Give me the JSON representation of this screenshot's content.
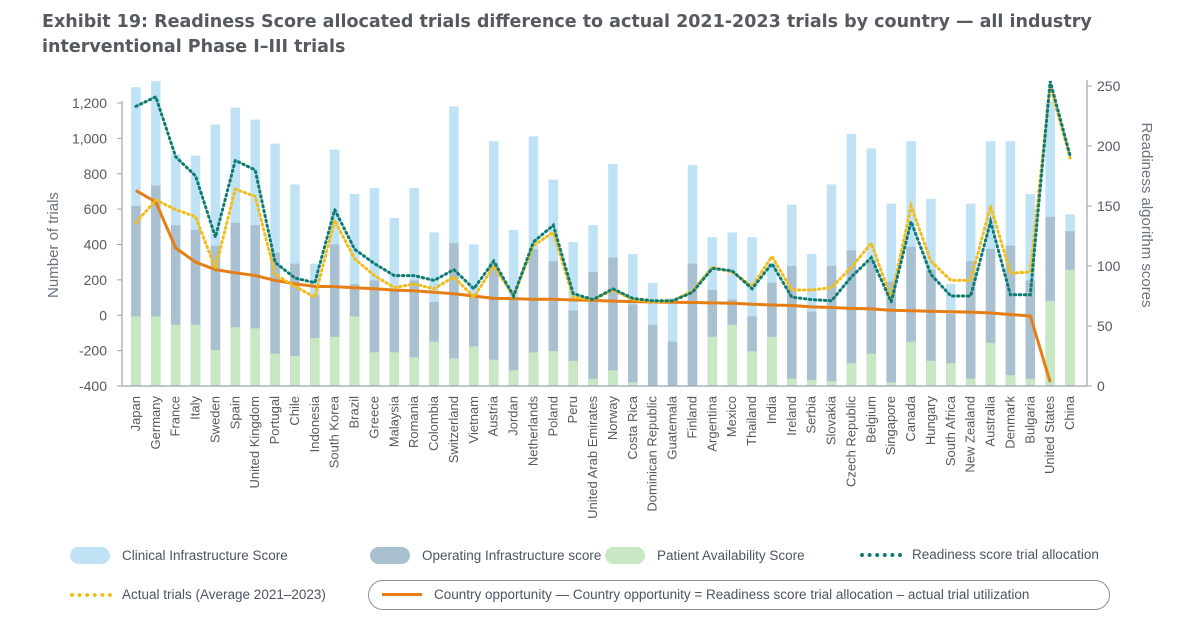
{
  "title": "Exhibit 19: Readiness Score allocated trials difference to actual 2021-2023 trials by country — all industry interventional Phase I–III trials",
  "colors": {
    "clinical": "#bfe3f5",
    "operating": "#a9c0d1",
    "patient": "#c8e8c3",
    "readiness": "#0e7c74",
    "actual": "#f2bd1a",
    "opportunity": "#e67e16",
    "axis": "#9ea5ad",
    "text": "#555a61"
  },
  "legend": {
    "clinical": "Clinical Infrastructure Score",
    "operating": "Operating Infrastructure score",
    "patient": "Patient Availability Score",
    "readiness": "Readiness score trial allocation",
    "actual": "Actual trials (Average 2021–2023)",
    "opportunity": "Country opportunity — Country opportunity = Readiness score trial allocation – actual trial utilization"
  },
  "chart_data": {
    "type": "bar",
    "ylabel": "Number of trials",
    "y2label": "Readiness algorithm scores",
    "ylim": [
      -400,
      1200
    ],
    "y2lim": [
      0,
      250
    ],
    "yticks": [
      "-400",
      "-200",
      "0",
      "200",
      "400",
      "600",
      "800",
      "1,000",
      "1,200"
    ],
    "y2ticks": [
      "0",
      "50",
      "100",
      "150",
      "200",
      "250"
    ],
    "categories": [
      "Japan",
      "Germany",
      "France",
      "Italy",
      "Sweden",
      "Spain",
      "United Kingdom",
      "Portugal",
      "Chile",
      "Indonesia",
      "South Korea",
      "Brazil",
      "Greece",
      "Malaysia",
      "Romania",
      "Colombia",
      "Switzerland",
      "Vietnam",
      "Austria",
      "Jordan",
      "Netherlands",
      "Poland",
      "Peru",
      "United Arab Emirates",
      "Norway",
      "Costa Rica",
      "Dominican Republic",
      "Guatemala",
      "Finland",
      "Argentina",
      "Mexico",
      "Thailand",
      "India",
      "Ireland",
      "Serbia",
      "Slovakia",
      "Czech Republic",
      "Belgium",
      "Singapore",
      "Canada",
      "Hungary",
      "South Africa",
      "New Zealand",
      "Australia",
      "Denmark",
      "Bulgaria",
      "United States",
      "China"
    ],
    "series": [
      {
        "name": "Clinical Infrastructure Score",
        "axis": "right",
        "stack": "top",
        "values": [
          249,
          254,
          193,
          192,
          218,
          232,
          222,
          202,
          168,
          102,
          197,
          160,
          165,
          140,
          165,
          128,
          233,
          118,
          204,
          130,
          208,
          172,
          120,
          134,
          185,
          110,
          86,
          73,
          184,
          124,
          128,
          124,
          102,
          151,
          110,
          168,
          210,
          198,
          152,
          204,
          156,
          85,
          152,
          204,
          204,
          160,
          237,
          143
        ]
      },
      {
        "name": "Operating Infrastructure score",
        "axis": "right",
        "stack": "middle",
        "values": [
          150,
          167,
          134,
          130,
          117,
          136,
          134,
          111,
          102,
          76,
          118,
          85,
          88,
          79,
          88,
          70,
          119,
          76,
          103,
          72,
          114,
          104,
          63,
          95,
          107,
          68,
          51,
          37,
          102,
          80,
          72,
          58,
          86,
          100,
          62,
          100,
          113,
          104,
          87,
          116,
          97,
          60,
          104,
          114,
          117,
          88,
          141,
          129
        ]
      },
      {
        "name": "Patient Availability Score",
        "axis": "right",
        "stack": "bottom",
        "values": [
          58,
          58,
          51,
          51,
          30,
          49,
          48,
          27,
          25,
          40,
          41,
          58,
          28,
          28,
          24,
          37,
          23,
          33,
          22,
          13,
          28,
          29,
          21,
          6,
          13,
          3,
          0,
          0,
          0,
          41,
          51,
          29,
          41,
          6,
          5,
          4,
          19,
          27,
          3,
          37,
          21,
          19,
          6,
          36,
          9,
          6,
          71,
          97
        ]
      },
      {
        "name": "Readiness score trial allocation",
        "axis": "right",
        "values": [
          233,
          241,
          191,
          175,
          124,
          188,
          180,
          103,
          90,
          86,
          147,
          114,
          102,
          92,
          92,
          88,
          97,
          81,
          104,
          75,
          120,
          134,
          77,
          72,
          81,
          73,
          71,
          71,
          78,
          98,
          96,
          81,
          102,
          74,
          72,
          71,
          91,
          107,
          70,
          137,
          93,
          75,
          75,
          137,
          76,
          76,
          254,
          192
        ]
      },
      {
        "name": "Actual trials (Average 2021–2023)",
        "axis": "right",
        "values": [
          136,
          155,
          147,
          141,
          98,
          164,
          158,
          93,
          83,
          74,
          138,
          106,
          92,
          82,
          85,
          81,
          91,
          74,
          100,
          75,
          117,
          128,
          74,
          72,
          80,
          72,
          70,
          71,
          79,
          99,
          95,
          83,
          108,
          80,
          80,
          82,
          99,
          119,
          73,
          150,
          104,
          88,
          88,
          150,
          94,
          95,
          250,
          190
        ]
      },
      {
        "name": "Country opportunity",
        "axis": "left",
        "values": [
          705,
          640,
          380,
          300,
          258,
          240,
          225,
          197,
          178,
          163,
          162,
          156,
          150,
          142,
          138,
          130,
          121,
          109,
          95,
          94,
          91,
          90,
          86,
          84,
          80,
          77,
          75,
          73,
          72,
          70,
          68,
          62,
          58,
          55,
          47,
          44,
          39,
          36,
          28,
          25,
          23,
          20,
          18,
          13,
          4,
          -4,
          -378,
          null
        ]
      }
    ]
  }
}
